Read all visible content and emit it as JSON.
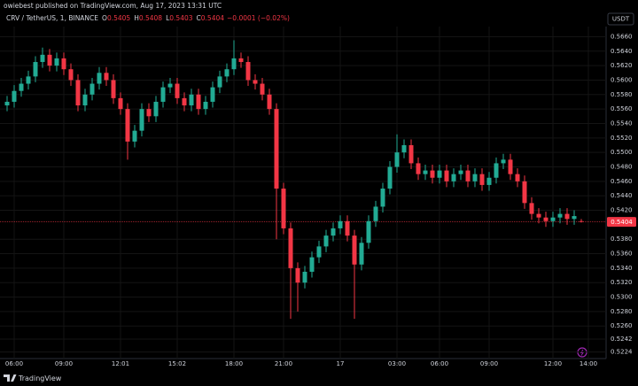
{
  "header": {
    "published": "owiebest published on TradingView.com, Aug 17, 2023 13:31 UTC"
  },
  "legend": {
    "symbol": "CRV / TetherUS, 1, BINANCE",
    "items": [
      {
        "key": "O",
        "value": "0.5405"
      },
      {
        "key": "H",
        "value": "0.5408"
      },
      {
        "key": "L",
        "value": "0.5403"
      },
      {
        "key": "C",
        "value": "0.5404"
      }
    ],
    "change": "−0.0001 (−0.02%)"
  },
  "currency": "USDT",
  "footer": {
    "brand": "TradingView"
  },
  "chart_data": {
    "type": "candlestick",
    "categories": [
      null,
      "06:00",
      null,
      null,
      null,
      null,
      null,
      null,
      "09:00",
      null,
      null,
      null,
      null,
      null,
      null,
      null,
      "12:01",
      null,
      null,
      null,
      null,
      null,
      null,
      null,
      "15:02",
      null,
      null,
      null,
      null,
      null,
      null,
      null,
      "18:00",
      null,
      null,
      null,
      null,
      null,
      null,
      "21:00",
      null,
      null,
      null,
      null,
      null,
      null,
      null,
      "17",
      null,
      null,
      null,
      null,
      null,
      null,
      null,
      "03:00",
      null,
      null,
      null,
      null,
      null,
      "06:00",
      null,
      null,
      null,
      null,
      null,
      null,
      "09:00",
      null,
      null,
      null,
      null,
      null,
      null,
      null,
      null,
      "12:00",
      null,
      null,
      null,
      null,
      "14:00"
    ],
    "open": [
      0.5565,
      0.557,
      0.5585,
      0.5595,
      0.5605,
      0.5625,
      0.5635,
      0.562,
      0.563,
      0.5615,
      0.56,
      0.5565,
      0.558,
      0.5595,
      0.561,
      0.56,
      0.5575,
      0.556,
      0.5515,
      0.553,
      0.556,
      0.555,
      0.557,
      0.559,
      0.5595,
      0.5575,
      0.5565,
      0.558,
      0.556,
      0.557,
      0.559,
      0.5605,
      0.5615,
      0.563,
      0.5625,
      0.56,
      0.5595,
      0.558,
      0.556,
      0.545,
      0.5395,
      0.534,
      0.532,
      0.5335,
      0.5355,
      0.537,
      0.5385,
      0.5395,
      0.5405,
      0.5385,
      0.5345,
      0.5375,
      0.5405,
      0.5425,
      0.545,
      0.548,
      0.55,
      0.551,
      0.5485,
      0.547,
      0.5475,
      0.5465,
      0.5475,
      0.546,
      0.547,
      0.5475,
      0.546,
      0.547,
      0.5455,
      0.5465,
      0.5485,
      0.549,
      0.547,
      0.546,
      0.543,
      0.5415,
      0.541,
      0.5405,
      0.541,
      0.5415,
      0.5408,
      0.5405,
      null
    ],
    "high": [
      0.5578,
      0.5593,
      0.5603,
      0.5613,
      0.5633,
      0.5645,
      0.5643,
      0.5638,
      0.5638,
      0.5623,
      0.5608,
      0.5588,
      0.5603,
      0.5618,
      0.5618,
      0.5608,
      0.5583,
      0.5568,
      0.5538,
      0.5568,
      0.5568,
      0.5578,
      0.5598,
      0.5603,
      0.5603,
      0.5583,
      0.5588,
      0.5588,
      0.5578,
      0.5598,
      0.5613,
      0.5623,
      0.5655,
      0.5638,
      0.5633,
      0.5608,
      0.5603,
      0.5588,
      0.5568,
      0.5458,
      0.5403,
      0.5348,
      0.5343,
      0.5363,
      0.5378,
      0.5393,
      0.5403,
      0.5413,
      0.5413,
      0.5393,
      0.5383,
      0.5413,
      0.5433,
      0.5458,
      0.5488,
      0.5525,
      0.5518,
      0.5518,
      0.5493,
      0.5483,
      0.5483,
      0.5483,
      0.5483,
      0.5478,
      0.5483,
      0.5483,
      0.5478,
      0.5478,
      0.5473,
      0.5493,
      0.5498,
      0.5498,
      0.5478,
      0.5468,
      0.5438,
      0.5423,
      0.5418,
      0.5418,
      0.5423,
      0.5423,
      0.542,
      0.5408,
      null
    ],
    "low": [
      0.5557,
      0.5562,
      0.5577,
      0.5587,
      0.5597,
      0.5617,
      0.5612,
      0.5612,
      0.5607,
      0.5592,
      0.5557,
      0.5557,
      0.5572,
      0.5587,
      0.5592,
      0.5567,
      0.5552,
      0.549,
      0.5507,
      0.5522,
      0.5542,
      0.5542,
      0.5562,
      0.5582,
      0.5567,
      0.5557,
      0.5557,
      0.5552,
      0.5552,
      0.5562,
      0.5582,
      0.5597,
      0.5607,
      0.5617,
      0.5592,
      0.5587,
      0.5572,
      0.5552,
      0.538,
      0.5387,
      0.527,
      0.528,
      0.5312,
      0.5327,
      0.5347,
      0.5362,
      0.5377,
      0.5387,
      0.5377,
      0.527,
      0.5337,
      0.5367,
      0.5397,
      0.5417,
      0.5442,
      0.5472,
      0.5492,
      0.5477,
      0.5462,
      0.5462,
      0.5457,
      0.5457,
      0.5452,
      0.5452,
      0.5462,
      0.5452,
      0.5452,
      0.5447,
      0.5447,
      0.5457,
      0.5477,
      0.5462,
      0.5452,
      0.5422,
      0.5407,
      0.5402,
      0.5397,
      0.5397,
      0.5402,
      0.54,
      0.54,
      0.5403,
      null
    ],
    "close": [
      0.557,
      0.5585,
      0.5595,
      0.5605,
      0.5625,
      0.5635,
      0.562,
      0.563,
      0.5615,
      0.56,
      0.5565,
      0.558,
      0.5595,
      0.561,
      0.56,
      0.5575,
      0.556,
      0.5515,
      0.553,
      0.556,
      0.555,
      0.557,
      0.559,
      0.5595,
      0.5575,
      0.5565,
      0.558,
      0.556,
      0.557,
      0.559,
      0.5605,
      0.5615,
      0.563,
      0.5625,
      0.56,
      0.5595,
      0.558,
      0.556,
      0.545,
      0.5395,
      0.534,
      0.532,
      0.5335,
      0.5355,
      0.537,
      0.5385,
      0.5395,
      0.5405,
      0.5385,
      0.5345,
      0.5375,
      0.5405,
      0.5425,
      0.545,
      0.548,
      0.55,
      0.551,
      0.5485,
      0.547,
      0.5475,
      0.5465,
      0.5475,
      0.546,
      0.547,
      0.5475,
      0.546,
      0.547,
      0.5455,
      0.5465,
      0.5485,
      0.549,
      0.547,
      0.546,
      0.543,
      0.5415,
      0.541,
      0.5405,
      0.541,
      0.5415,
      0.5408,
      0.5412,
      0.5404,
      null
    ],
    "up_color": "#22ab94",
    "down_color": "#f23645",
    "ylim": [
      0.5215,
      0.5674
    ],
    "yticks": [
      {
        "value": 0.566,
        "label": "0.5660"
      },
      {
        "value": 0.564,
        "label": "0.5640"
      },
      {
        "value": 0.562,
        "label": "0.5620"
      },
      {
        "value": 0.56,
        "label": "0.5600"
      },
      {
        "value": 0.558,
        "label": "0.5580"
      },
      {
        "value": 0.556,
        "label": "0.5560"
      },
      {
        "value": 0.554,
        "label": "0.5540"
      },
      {
        "value": 0.552,
        "label": "0.5520"
      },
      {
        "value": 0.55,
        "label": "0.5500"
      },
      {
        "value": 0.548,
        "label": "0.5480"
      },
      {
        "value": 0.546,
        "label": "0.5460"
      },
      {
        "value": 0.544,
        "label": "0.5440"
      },
      {
        "value": 0.542,
        "label": "0.5420"
      },
      {
        "value": 0.538,
        "label": "0.5380"
      },
      {
        "value": 0.536,
        "label": "0.5360"
      },
      {
        "value": 0.534,
        "label": "0.5340"
      },
      {
        "value": 0.532,
        "label": "0.5320"
      },
      {
        "value": 0.53,
        "label": "0.5300"
      },
      {
        "value": 0.528,
        "label": "0.5280"
      },
      {
        "value": 0.526,
        "label": "0.5260"
      },
      {
        "value": 0.5242,
        "label": "0.5242"
      },
      {
        "value": 0.5224,
        "label": "0.5224"
      }
    ],
    "current_price": 0.5404,
    "grid": true
  }
}
